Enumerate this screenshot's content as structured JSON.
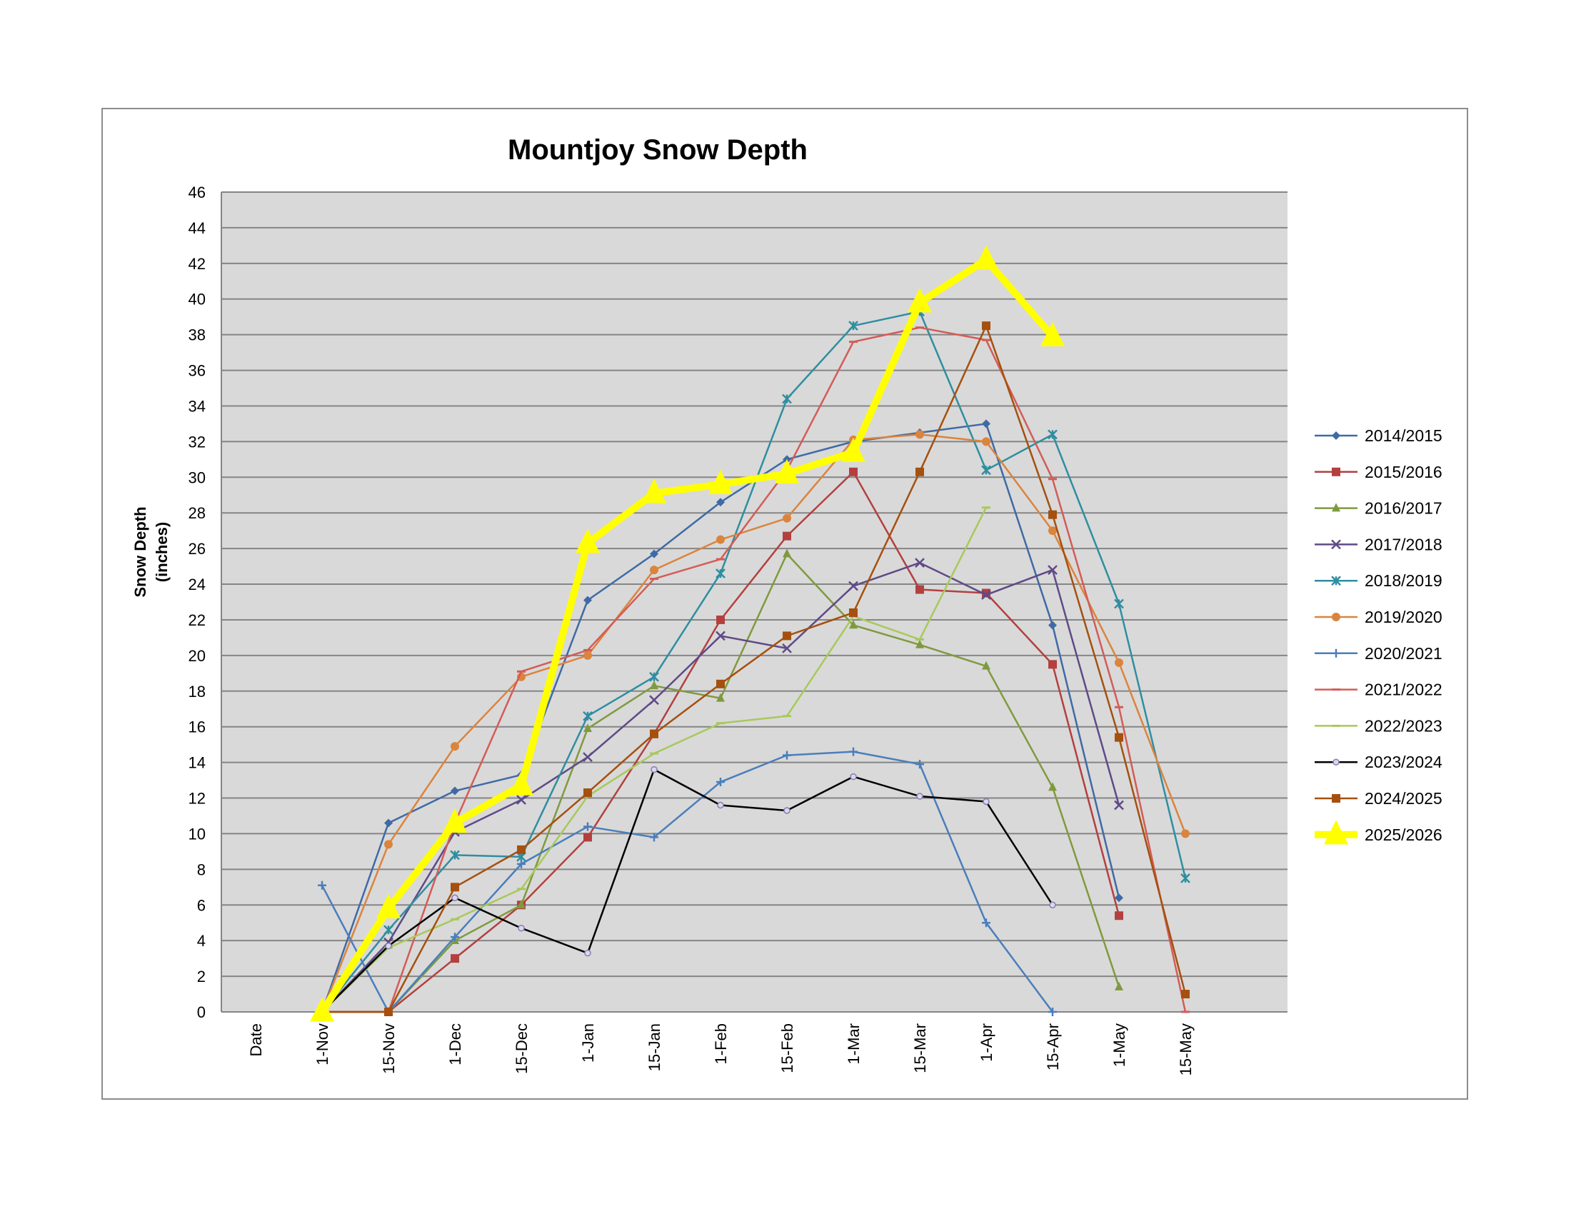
{
  "chart_data": {
    "type": "line",
    "title": "Mountjoy Snow Depth",
    "ylabel_lines": [
      "Snow Depth",
      "(inches)"
    ],
    "xlabel": "",
    "categories": [
      "Date",
      "1-Nov",
      "15-Nov",
      "1-Dec",
      "15-Dec",
      "1-Jan",
      "15-Jan",
      "1-Feb",
      "15-Feb",
      "1-Mar",
      "15-Mar",
      "1-Apr",
      "15-Apr",
      "1-May",
      "15-May"
    ],
    "ylim": [
      0,
      46
    ],
    "ytick_step": 2,
    "grid": true,
    "legend_position": "right",
    "plot_background": "#d9d9d9",
    "series": [
      {
        "name": "2014/2015",
        "color": "#3f6aa5",
        "marker": "diamond",
        "values": [
          null,
          0,
          10.6,
          12.4,
          13.3,
          23.1,
          25.7,
          28.6,
          31.0,
          32.0,
          32.5,
          33.0,
          21.7,
          6.4,
          null
        ]
      },
      {
        "name": "2015/2016",
        "color": "#b3403f",
        "marker": "square",
        "values": [
          null,
          0,
          0,
          3.0,
          6.0,
          9.8,
          15.6,
          22.0,
          26.7,
          30.3,
          23.7,
          23.5,
          19.5,
          5.4,
          null
        ]
      },
      {
        "name": "2016/2017",
        "color": "#7f9a3e",
        "marker": "triangle",
        "values": [
          null,
          0,
          0,
          4.0,
          6.0,
          15.9,
          18.3,
          17.6,
          25.7,
          21.7,
          20.6,
          19.4,
          12.6,
          1.4,
          null
        ]
      },
      {
        "name": "2017/2018",
        "color": "#5f4a87",
        "marker": "x",
        "values": [
          null,
          0,
          3.9,
          10.1,
          11.9,
          14.3,
          17.5,
          21.1,
          20.4,
          23.9,
          25.2,
          23.4,
          24.8,
          11.6,
          null
        ]
      },
      {
        "name": "2018/2019",
        "color": "#2f8ea0",
        "marker": "star",
        "values": [
          null,
          0,
          4.6,
          8.8,
          8.7,
          16.6,
          18.8,
          24.6,
          34.4,
          38.5,
          39.3,
          30.4,
          32.4,
          22.9,
          7.5
        ]
      },
      {
        "name": "2019/2020",
        "color": "#db843d",
        "marker": "circle",
        "values": [
          null,
          0,
          9.4,
          14.9,
          18.8,
          20.0,
          24.8,
          26.5,
          27.7,
          32.1,
          32.4,
          32.0,
          27.0,
          19.6,
          10.0
        ]
      },
      {
        "name": "2020/2021",
        "color": "#4a7ebb",
        "marker": "plus",
        "values": [
          null,
          7.1,
          0,
          4.2,
          8.3,
          10.4,
          9.8,
          12.9,
          14.4,
          14.6,
          13.9,
          5.0,
          0,
          null,
          null
        ]
      },
      {
        "name": "2021/2022",
        "color": "#d35c57",
        "marker": "dash",
        "values": [
          null,
          0,
          0,
          10.6,
          19.1,
          20.3,
          24.3,
          25.4,
          30.4,
          37.6,
          38.4,
          37.7,
          29.9,
          17.1,
          0
        ]
      },
      {
        "name": "2022/2023",
        "color": "#a8c95a",
        "marker": "dash",
        "values": [
          null,
          0,
          3.6,
          5.2,
          6.9,
          12.1,
          14.5,
          16.2,
          16.6,
          22.2,
          20.9,
          28.3,
          null,
          null,
          null
        ]
      },
      {
        "name": "2023/2024",
        "color": "#000000",
        "marker": "circle-small",
        "values": [
          null,
          0,
          3.7,
          6.4,
          4.7,
          3.3,
          13.6,
          11.6,
          11.3,
          13.2,
          12.1,
          11.8,
          6.0,
          null,
          null
        ]
      },
      {
        "name": "2024/2025",
        "color": "#a5500f",
        "marker": "square",
        "values": [
          null,
          0,
          0,
          7.0,
          9.1,
          12.3,
          15.6,
          18.4,
          21.1,
          22.4,
          30.3,
          38.5,
          27.9,
          15.4,
          1.0
        ]
      },
      {
        "name": "2025/2026",
        "color": "#ffff00",
        "marker": "triangle-large",
        "bold": true,
        "values": [
          null,
          0,
          5.8,
          10.6,
          12.7,
          26.3,
          29.1,
          29.6,
          30.2,
          31.4,
          39.8,
          42.2,
          37.9,
          null,
          null
        ]
      }
    ]
  }
}
